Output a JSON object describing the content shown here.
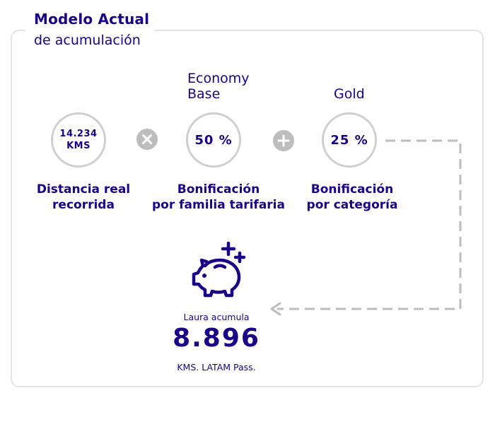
{
  "header": {
    "title": "Modelo Actual",
    "subtitle": "de acumulación"
  },
  "steps": [
    {
      "value_line1": "14.234",
      "value_line2": "KMS",
      "label_line1": "Distancia real",
      "label_line2": "recorrida"
    },
    {
      "tag_line1": "Economy",
      "tag_line2": "Base",
      "value": "50 %",
      "label_line1": "Bonificación",
      "label_line2": "por familia tarifaria"
    },
    {
      "tag_line1": "Gold",
      "value": "25 %",
      "label_line1": "Bonificación",
      "label_line2": "por categoría"
    }
  ],
  "operators": [
    "multiply-icon",
    "plus-icon"
  ],
  "result": {
    "intro": "Laura acumula",
    "value": "8.896",
    "unit": "KMS. LATAM Pass."
  },
  "colors": {
    "primary": "#1b0088",
    "gray_border": "#cfcfcf",
    "operator_gray": "#bdbdbd",
    "frame_gray": "#e4e4e4"
  }
}
